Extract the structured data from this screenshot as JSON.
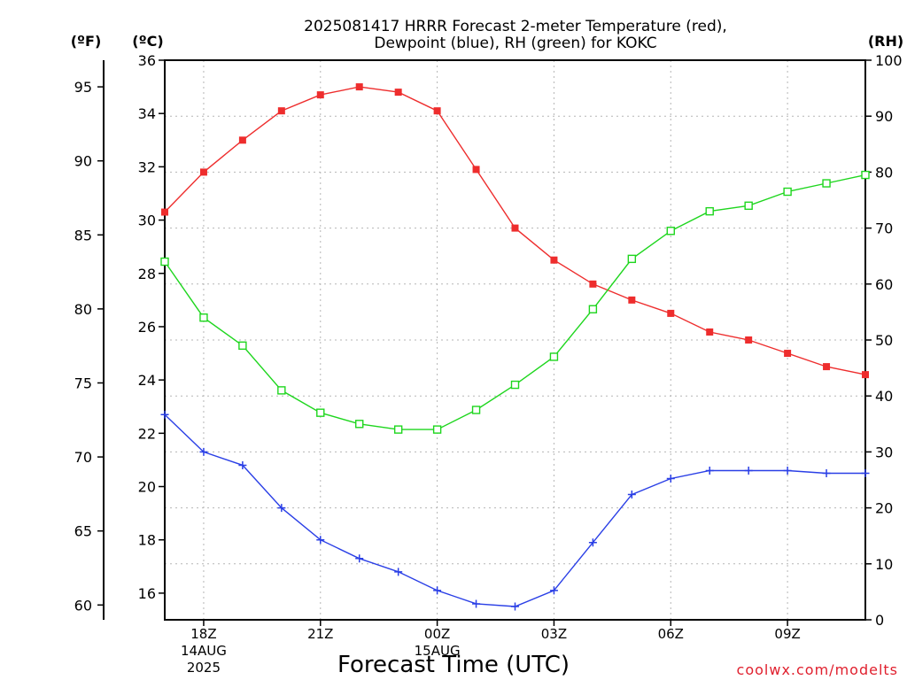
{
  "chart_data": {
    "type": "line",
    "title_lines": [
      "2025081417 HRRR Forecast 2-meter Temperature (red),",
      "Dewpoint (blue), RH (green) for KOKC"
    ],
    "xlabel": "Forecast Time (UTC)",
    "credit": "coolwx.com/modelts",
    "x_hours": [
      17,
      18,
      19,
      20,
      21,
      22,
      23,
      24,
      25,
      26,
      27,
      28,
      29,
      30,
      31,
      32,
      33,
      34,
      35
    ],
    "x_ticks": [
      {
        "hour": 18,
        "lines": [
          "18Z",
          "14AUG",
          "2025"
        ]
      },
      {
        "hour": 21,
        "lines": [
          "21Z"
        ]
      },
      {
        "hour": 24,
        "lines": [
          "00Z",
          "15AUG"
        ]
      },
      {
        "hour": 27,
        "lines": [
          "03Z"
        ]
      },
      {
        "hour": 30,
        "lines": [
          "06Z"
        ]
      },
      {
        "hour": 33,
        "lines": [
          "09Z"
        ]
      }
    ],
    "left_axis_c": {
      "unit": "(ºC)",
      "range": [
        15.0,
        36.0
      ],
      "ticks": [
        16,
        18,
        20,
        22,
        24,
        26,
        28,
        30,
        32,
        34,
        36
      ]
    },
    "left_axis_f": {
      "unit": "(ºF)",
      "ticks": [
        60,
        65,
        70,
        75,
        80,
        85,
        90,
        95
      ]
    },
    "right_axis_rh": {
      "unit": "(RH)",
      "range": [
        0,
        100
      ],
      "ticks": [
        0,
        10,
        20,
        30,
        40,
        50,
        60,
        70,
        80,
        90,
        100
      ]
    },
    "grid": true,
    "series": [
      {
        "key": "temperature",
        "axis": "c",
        "marker": "filled-square",
        "color": "#ee2d2d",
        "values": [
          30.3,
          31.8,
          33.0,
          34.1,
          34.7,
          35.0,
          34.8,
          34.1,
          31.9,
          29.7,
          28.5,
          27.6,
          27.0,
          26.5,
          25.8,
          25.5,
          25.0,
          24.5,
          24.2
        ]
      },
      {
        "key": "dewpoint",
        "axis": "c",
        "marker": "plus",
        "color": "#2a3fe6",
        "values": [
          22.7,
          21.3,
          20.8,
          19.2,
          18.0,
          17.3,
          16.8,
          16.1,
          15.6,
          15.5,
          16.1,
          17.9,
          19.7,
          20.3,
          20.6,
          20.6,
          20.6,
          20.5,
          20.5
        ]
      },
      {
        "key": "rh",
        "axis": "rh",
        "marker": "open-square",
        "color": "#1ed61e",
        "values": [
          64,
          54,
          49,
          41,
          37,
          35,
          34,
          34,
          37.5,
          42,
          47,
          55.5,
          64.5,
          69.5,
          73,
          74,
          76.5,
          78,
          79.5
        ]
      }
    ]
  }
}
